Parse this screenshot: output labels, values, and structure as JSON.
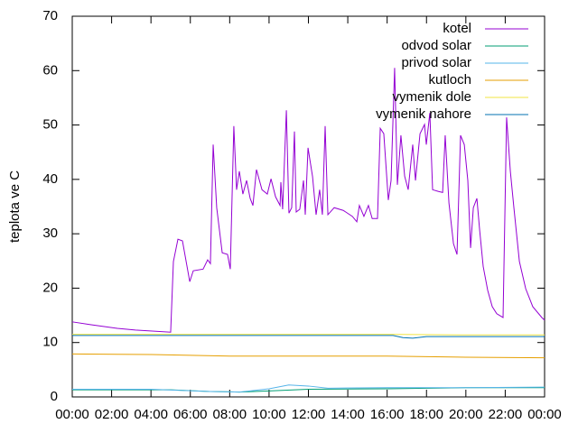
{
  "chart_data": {
    "type": "line",
    "ylabel": "teplota ve C",
    "xlim": [
      0,
      24
    ],
    "xticks": [
      {
        "value": 0,
        "label": "00:00"
      },
      {
        "value": 2,
        "label": "02:00"
      },
      {
        "value": 4,
        "label": "04:00"
      },
      {
        "value": 6,
        "label": "06:00"
      },
      {
        "value": 8,
        "label": "08:00"
      },
      {
        "value": 10,
        "label": "10:00"
      },
      {
        "value": 12,
        "label": "12:00"
      },
      {
        "value": 14,
        "label": "14:00"
      },
      {
        "value": 16,
        "label": "16:00"
      },
      {
        "value": 18,
        "label": "18:00"
      },
      {
        "value": 20,
        "label": "20:00"
      },
      {
        "value": 22,
        "label": "22:00"
      },
      {
        "value": 24,
        "label": "00:00"
      }
    ],
    "ylim": [
      0,
      70
    ],
    "yticks": [
      0,
      10,
      20,
      30,
      40,
      50,
      60,
      70
    ],
    "legend": "top-right",
    "series": [
      {
        "name": "kotel",
        "color": "#9400d3",
        "x": [
          0,
          0.92,
          2.29,
          3.21,
          5.0,
          5.14,
          5.37,
          5.6,
          5.97,
          6.15,
          6.65,
          6.88,
          7.02,
          7.16,
          7.34,
          7.62,
          7.89,
          8.03,
          8.21,
          8.35,
          8.49,
          8.67,
          8.86,
          9.04,
          9.18,
          9.36,
          9.64,
          9.91,
          10.1,
          10.33,
          10.56,
          10.6,
          10.69,
          10.88,
          11.01,
          11.15,
          11.29,
          11.38,
          11.56,
          11.75,
          11.84,
          11.98,
          12.21,
          12.39,
          12.57,
          12.71,
          12.85,
          12.99,
          13.31,
          13.77,
          14.23,
          14.46,
          14.59,
          14.82,
          15.05,
          15.24,
          15.51,
          15.65,
          15.83,
          16.06,
          16.2,
          16.38,
          16.52,
          16.7,
          16.89,
          17.07,
          17.3,
          17.44,
          17.67,
          17.9,
          17.99,
          18.17,
          18.31,
          18.59,
          18.82,
          18.95,
          19.14,
          19.37,
          19.55,
          19.73,
          19.92,
          20.1,
          20.24,
          20.38,
          20.56,
          20.7,
          20.88,
          21.11,
          21.34,
          21.57,
          21.89,
          22.07,
          22.26,
          22.44,
          22.72,
          23.04,
          23.4,
          23.86,
          24.0
        ],
        "values": [
          13.8,
          13.3,
          12.6,
          12.3,
          11.9,
          24.9,
          29.0,
          28.7,
          21.2,
          23.2,
          23.5,
          25.2,
          24.5,
          46.4,
          34.8,
          26.5,
          26.2,
          23.5,
          49.8,
          38.1,
          41.5,
          37.3,
          39.8,
          36.5,
          35.2,
          41.8,
          38.1,
          37.3,
          40.1,
          36.8,
          35.2,
          39.5,
          34.5,
          52.7,
          33.8,
          34.8,
          48.8,
          34.0,
          34.5,
          39.8,
          33.5,
          45.8,
          40.5,
          33.5,
          38.1,
          33.5,
          49.8,
          33.5,
          34.8,
          34.3,
          33.2,
          32.2,
          35.2,
          33.2,
          35.2,
          32.8,
          32.8,
          49.4,
          48.4,
          36.2,
          39.8,
          60.5,
          39.0,
          48.1,
          40.6,
          38.1,
          46.4,
          39.8,
          48.4,
          50.1,
          46.4,
          52.2,
          38.1,
          37.8,
          37.6,
          48.1,
          35.7,
          28.2,
          26.2,
          48.1,
          46.4,
          39.8,
          27.4,
          34.8,
          36.5,
          30.7,
          24.0,
          19.6,
          16.6,
          15.3,
          14.6,
          51.4,
          41.5,
          34.8,
          24.9,
          19.9,
          16.6,
          14.6,
          14.1
        ]
      },
      {
        "name": "odvod solar",
        "color": "#009e73",
        "x": [
          0,
          5,
          7,
          8.5,
          10,
          12,
          16,
          20,
          24
        ],
        "values": [
          1.3,
          1.3,
          1.0,
          0.9,
          1.1,
          1.4,
          1.5,
          1.7,
          1.7
        ]
      },
      {
        "name": "privod solar",
        "color": "#56b4e9",
        "x": [
          0,
          4,
          7,
          8.5,
          10,
          11,
          12,
          13,
          16,
          20,
          24
        ],
        "values": [
          1.4,
          1.4,
          1.0,
          0.9,
          1.5,
          2.2,
          2.0,
          1.6,
          1.7,
          1.7,
          1.8
        ]
      },
      {
        "name": "kutloch",
        "color": "#e69f00",
        "x": [
          0,
          4,
          8,
          12,
          16,
          20,
          24
        ],
        "values": [
          7.9,
          7.8,
          7.5,
          7.5,
          7.5,
          7.3,
          7.2
        ]
      },
      {
        "name": "vymenik dole",
        "color": "#f0e442",
        "x": [
          0,
          8,
          16,
          20,
          24
        ],
        "values": [
          11.5,
          11.5,
          11.5,
          11.4,
          11.4
        ]
      },
      {
        "name": "vymenik nahore",
        "color": "#0072b2",
        "x": [
          0,
          5,
          10,
          16.3,
          16.8,
          17.3,
          18,
          20,
          24
        ],
        "values": [
          11.3,
          11.3,
          11.3,
          11.3,
          10.9,
          10.8,
          11.1,
          11.1,
          11.1
        ]
      }
    ]
  }
}
